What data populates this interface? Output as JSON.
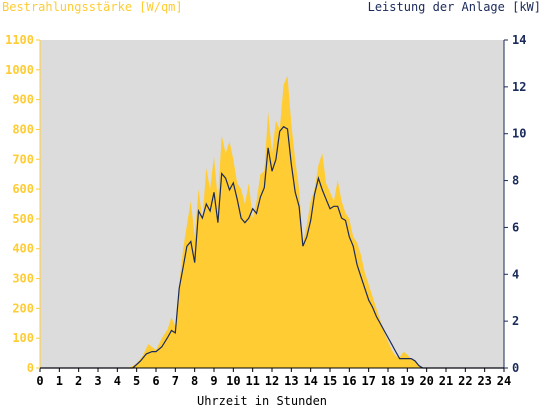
{
  "chart_data": {
    "type": "area",
    "left_axis_title": "Bestrahlungsstärke [W/qm]",
    "right_axis_title": "Leistung der Anlage [kW]",
    "xlabel": "Uhrzeit in Stunden",
    "xlim": [
      0,
      24
    ],
    "ylim_left": [
      0,
      1100
    ],
    "ylim_right": [
      0,
      14
    ],
    "x_ticks": [
      "0",
      "1",
      "2",
      "3",
      "4",
      "5",
      "6",
      "7",
      "8",
      "9",
      "10",
      "11",
      "12",
      "13",
      "14",
      "15",
      "16",
      "17",
      "18",
      "19",
      "20",
      "21",
      "22",
      "23",
      "24"
    ],
    "y_left_ticks": [
      "0",
      "100",
      "200",
      "300",
      "400",
      "500",
      "600",
      "700",
      "800",
      "900",
      "1000",
      "1100"
    ],
    "y_right_ticks": [
      "0",
      "2",
      "4",
      "6",
      "8",
      "10",
      "12",
      "14"
    ],
    "grid": false,
    "colors": {
      "background": "#ffffff",
      "plot_area": "#dcdcdc",
      "irradiance_fill": "#ffcc33",
      "power_line": "#1a2a5a",
      "left_axis_text": "#ffcc33",
      "right_axis_text": "#1a2a5a",
      "x_axis_text": "#000000"
    },
    "series": [
      {
        "name": "Bestrahlungsstärke [W/qm]",
        "kind": "area",
        "axis": "left",
        "x": [
          0,
          4.6,
          5.0,
          5.3,
          5.6,
          6.0,
          6.3,
          6.6,
          6.8,
          7.0,
          7.2,
          7.4,
          7.6,
          7.8,
          8.0,
          8.2,
          8.4,
          8.6,
          8.8,
          9.0,
          9.2,
          9.4,
          9.6,
          9.8,
          10.0,
          10.2,
          10.4,
          10.6,
          10.8,
          11.0,
          11.2,
          11.4,
          11.6,
          11.8,
          12.0,
          12.2,
          12.4,
          12.6,
          12.8,
          13.0,
          13.2,
          13.4,
          13.6,
          13.8,
          14.0,
          14.2,
          14.4,
          14.6,
          14.8,
          15.0,
          15.2,
          15.4,
          15.6,
          15.8,
          16.0,
          16.2,
          16.4,
          16.6,
          16.8,
          17.0,
          17.2,
          17.4,
          17.6,
          17.8,
          18.0,
          18.2,
          18.4,
          18.6,
          18.8,
          19.0,
          19.2,
          19.4,
          19.6,
          19.8,
          20.0,
          20.2,
          24
        ],
        "values": [
          0,
          0,
          15,
          40,
          80,
          60,
          100,
          130,
          170,
          140,
          280,
          400,
          480,
          560,
          440,
          600,
          500,
          670,
          600,
          710,
          560,
          780,
          720,
          760,
          700,
          620,
          600,
          550,
          620,
          500,
          560,
          650,
          660,
          860,
          720,
          830,
          800,
          950,
          980,
          820,
          700,
          600,
          420,
          480,
          560,
          600,
          680,
          720,
          620,
          590,
          560,
          630,
          560,
          520,
          500,
          440,
          420,
          380,
          320,
          280,
          240,
          200,
          160,
          120,
          90,
          60,
          40,
          35,
          55,
          45,
          30,
          20,
          10,
          0,
          0,
          0,
          0
        ]
      },
      {
        "name": "Leistung der Anlage [kW]",
        "kind": "line",
        "axis": "right",
        "x": [
          0,
          4.8,
          5.2,
          5.5,
          5.8,
          6.0,
          6.3,
          6.6,
          6.8,
          7.0,
          7.2,
          7.4,
          7.6,
          7.8,
          8.0,
          8.2,
          8.4,
          8.6,
          8.8,
          9.0,
          9.2,
          9.4,
          9.6,
          9.8,
          10.0,
          10.2,
          10.4,
          10.6,
          10.8,
          11.0,
          11.2,
          11.4,
          11.6,
          11.8,
          12.0,
          12.2,
          12.4,
          12.6,
          12.8,
          13.0,
          13.2,
          13.4,
          13.6,
          13.8,
          14.0,
          14.2,
          14.4,
          14.6,
          14.8,
          15.0,
          15.2,
          15.4,
          15.6,
          15.8,
          16.0,
          16.2,
          16.4,
          16.6,
          16.8,
          17.0,
          17.2,
          17.4,
          17.6,
          17.8,
          18.0,
          18.2,
          18.4,
          18.6,
          18.8,
          19.0,
          19.2,
          19.4,
          19.6,
          19.8,
          20.0,
          24
        ],
        "values": [
          0,
          0,
          0.3,
          0.6,
          0.7,
          0.7,
          0.9,
          1.3,
          1.6,
          1.5,
          3.4,
          4.3,
          5.2,
          5.4,
          4.5,
          6.7,
          6.4,
          7.0,
          6.7,
          7.5,
          6.2,
          8.3,
          8.1,
          7.6,
          7.9,
          7.2,
          6.4,
          6.2,
          6.4,
          6.8,
          6.6,
          7.3,
          7.7,
          9.4,
          8.4,
          8.9,
          10.1,
          10.3,
          10.2,
          8.7,
          7.5,
          6.9,
          5.2,
          5.6,
          6.3,
          7.4,
          8.1,
          7.6,
          7.2,
          6.8,
          6.9,
          6.9,
          6.4,
          6.3,
          5.6,
          5.2,
          4.4,
          3.9,
          3.4,
          2.9,
          2.6,
          2.2,
          1.9,
          1.6,
          1.3,
          1.0,
          0.7,
          0.4,
          0.4,
          0.4,
          0.4,
          0.3,
          0.1,
          0.0,
          0,
          0
        ]
      }
    ]
  }
}
